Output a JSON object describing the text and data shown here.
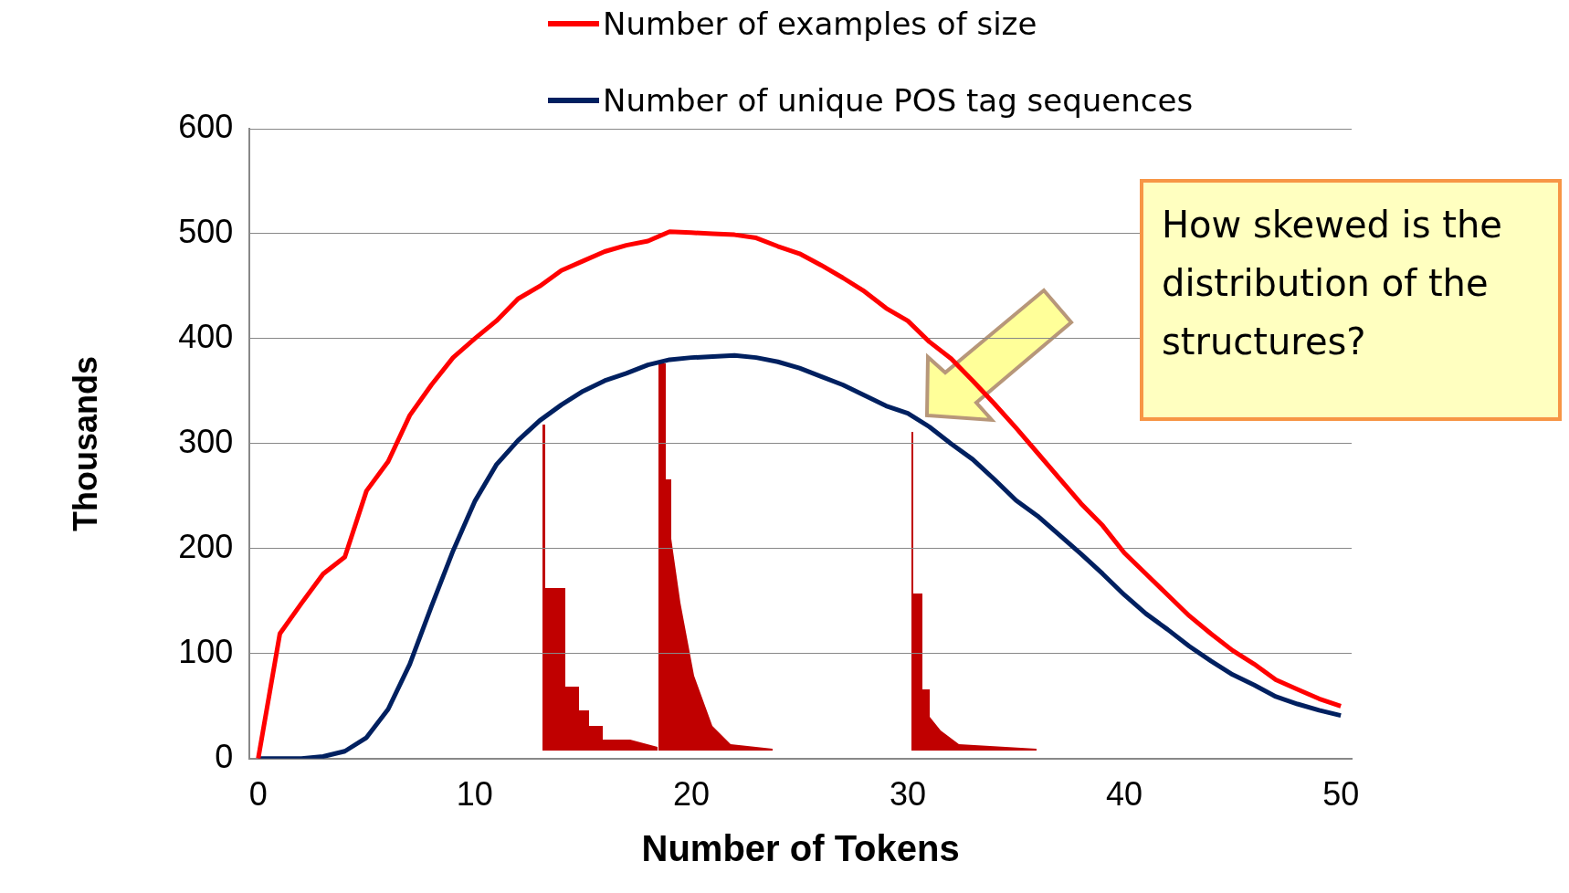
{
  "chart_data": {
    "type": "line",
    "xlabel": "Number of Tokens",
    "ylabel": "Thousands",
    "x": [
      0,
      1,
      2,
      3,
      4,
      5,
      6,
      7,
      8,
      9,
      10,
      11,
      12,
      13,
      14,
      15,
      16,
      17,
      18,
      19,
      20,
      21,
      22,
      23,
      24,
      25,
      26,
      27,
      28,
      29,
      30,
      31,
      32,
      33,
      34,
      35,
      36,
      37,
      38,
      39,
      40,
      41,
      42,
      43,
      44,
      45,
      46,
      47,
      48,
      49,
      50
    ],
    "series": [
      {
        "name": "Number of examples of size",
        "color": "#ff0000",
        "values": [
          0,
          119,
          148,
          176,
          192,
          255,
          283,
          327,
          356,
          382,
          400,
          417,
          438,
          450,
          465,
          474,
          483,
          489,
          493,
          502,
          501,
          500,
          499,
          496,
          488,
          481,
          470,
          458,
          445,
          429,
          417,
          397,
          381,
          360,
          338,
          315,
          291,
          267,
          243,
          222,
          196,
          176,
          156,
          136,
          119,
          103,
          90,
          75,
          66,
          57,
          50
        ]
      },
      {
        "name": "Number of unique POS tag sequences",
        "color": "#002060",
        "values": [
          0,
          0,
          0,
          2,
          7,
          20,
          47,
          90,
          145,
          198,
          245,
          280,
          303,
          322,
          337,
          350,
          360,
          367,
          375,
          380,
          382,
          383,
          384,
          382,
          378,
          372,
          364,
          356,
          346,
          336,
          329,
          316,
          300,
          285,
          266,
          246,
          231,
          213,
          195,
          176,
          156,
          138,
          123,
          107,
          93,
          80,
          70,
          59,
          52,
          46,
          41
        ]
      }
    ],
    "xlim": [
      -0.4,
      50.5
    ],
    "xticks": [
      0,
      10,
      20,
      30,
      40,
      50
    ],
    "ylim": [
      0,
      600
    ],
    "yticks": [
      0,
      100,
      200,
      300,
      400,
      500,
      600
    ],
    "grid": "y",
    "legend": "top",
    "marker": "none",
    "line_style": "solid",
    "annotations": [
      "How skewed is the distribution of the structures?"
    ]
  }
}
